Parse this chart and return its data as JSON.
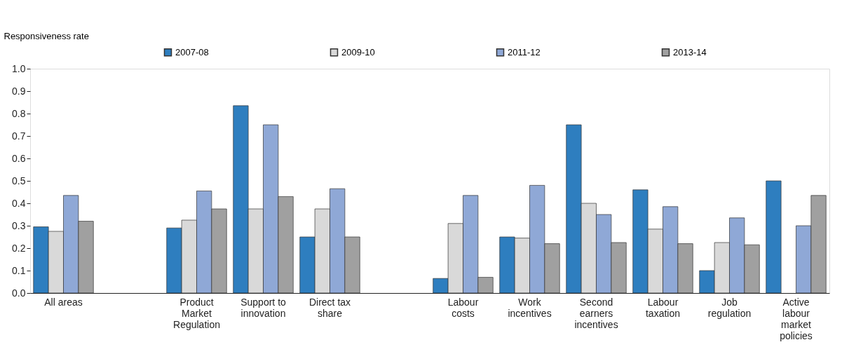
{
  "chart_data": {
    "type": "bar",
    "ylabel": "Responsiveness rate",
    "categories": [
      "All areas",
      null,
      "Product Market Regulation",
      "Support to innovation",
      "Direct tax share",
      null,
      "Labour costs",
      "Work incentives",
      "Second earners incentives",
      "Labour taxation",
      "Job regulation",
      "Active labour market policies"
    ],
    "series": [
      {
        "name": "2007-08",
        "color": "#2e7ebf",
        "values": [
          0.295,
          null,
          0.29,
          0.835,
          0.25,
          null,
          0.065,
          0.25,
          0.75,
          0.46,
          0.1,
          0.5
        ]
      },
      {
        "name": "2009-10",
        "color": "#d9d9d9",
        "values": [
          0.275,
          null,
          0.325,
          0.375,
          0.375,
          null,
          0.31,
          0.245,
          0.4,
          0.285,
          0.225,
          null
        ]
      },
      {
        "name": "2011-12",
        "color": "#8fa8d6",
        "values": [
          0.435,
          null,
          0.455,
          0.75,
          0.465,
          null,
          0.435,
          0.48,
          0.35,
          0.385,
          0.335,
          0.3
        ]
      },
      {
        "name": "2013-14",
        "color": "#a0a0a0",
        "values": [
          0.32,
          null,
          0.375,
          0.43,
          0.25,
          null,
          0.07,
          0.22,
          0.225,
          0.22,
          0.215,
          0.435
        ]
      }
    ],
    "ylim": [
      0,
      1
    ],
    "yticks": [
      {
        "value": 0,
        "label": "0.0"
      },
      0.1,
      0.2,
      0.3,
      0.4,
      0.5,
      0.6,
      0.7,
      0.8,
      0.9,
      {
        "value": 1,
        "label": "1.0"
      }
    ],
    "grid": false,
    "legend": "top"
  }
}
